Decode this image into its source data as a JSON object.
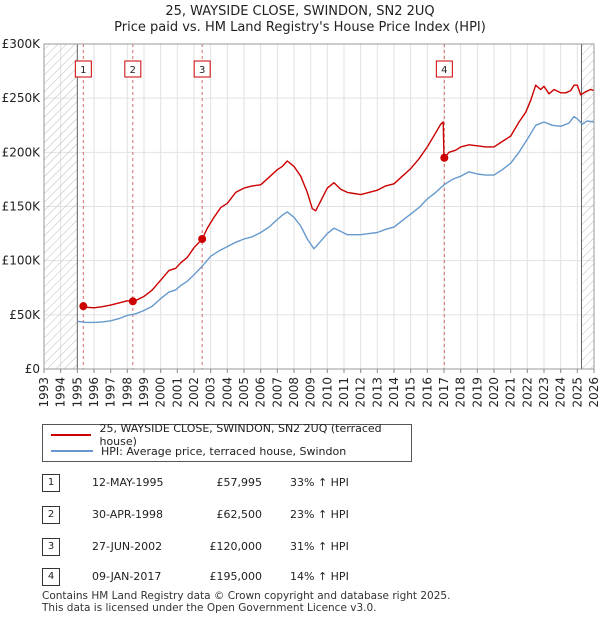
{
  "chart_data": {
    "type": "line",
    "title": "25, WAYSIDE CLOSE, SWINDON, SN2 2UQ",
    "subtitle": "Price paid vs. HM Land Registry's House Price Index (HPI)",
    "xlim": [
      1993,
      2026
    ],
    "ylim": [
      0,
      300000
    ],
    "x_ticks": [
      "1993",
      "1994",
      "1995",
      "1996",
      "1997",
      "1998",
      "1999",
      "2000",
      "2001",
      "2002",
      "2003",
      "2004",
      "2005",
      "2006",
      "2007",
      "2008",
      "2009",
      "2010",
      "2011",
      "2012",
      "2013",
      "2014",
      "2015",
      "2016",
      "2017",
      "2018",
      "2019",
      "2020",
      "2021",
      "2022",
      "2023",
      "2024",
      "2025",
      "2026"
    ],
    "y_ticks": [
      {
        "value": 0,
        "label": "£0"
      },
      {
        "value": 50000,
        "label": "£50K"
      },
      {
        "value": 100000,
        "label": "£100K"
      },
      {
        "value": 150000,
        "label": "£150K"
      },
      {
        "value": 200000,
        "label": "£200K"
      },
      {
        "value": 250000,
        "label": "£250K"
      },
      {
        "value": 300000,
        "label": "£300K"
      }
    ],
    "hatched_before": 1995.0,
    "hatched_after": 2025.25,
    "series": [
      {
        "name": "25, WAYSIDE CLOSE, SWINDON, SN2 2UQ (terraced house)",
        "color": "#cc0000",
        "points": [
          [
            1995.36,
            57995
          ],
          [
            1995.6,
            57000
          ],
          [
            1996.0,
            56500
          ],
          [
            1996.5,
            57500
          ],
          [
            1997.0,
            59000
          ],
          [
            1997.5,
            61000
          ],
          [
            1998.0,
            63000
          ],
          [
            1998.33,
            62500
          ],
          [
            1998.6,
            64000
          ],
          [
            1999.0,
            67000
          ],
          [
            1999.5,
            73000
          ],
          [
            2000.0,
            82000
          ],
          [
            2000.5,
            91000
          ],
          [
            2000.9,
            93000
          ],
          [
            2001.2,
            98000
          ],
          [
            2001.6,
            103000
          ],
          [
            2002.0,
            112000
          ],
          [
            2002.49,
            120000
          ],
          [
            2002.8,
            130000
          ],
          [
            2003.2,
            140000
          ],
          [
            2003.6,
            149000
          ],
          [
            2004.0,
            153000
          ],
          [
            2004.5,
            163000
          ],
          [
            2005.0,
            167000
          ],
          [
            2005.5,
            169000
          ],
          [
            2006.0,
            170000
          ],
          [
            2006.5,
            177000
          ],
          [
            2007.0,
            184000
          ],
          [
            2007.3,
            187000
          ],
          [
            2007.6,
            192000
          ],
          [
            2008.0,
            187000
          ],
          [
            2008.4,
            178000
          ],
          [
            2008.8,
            163000
          ],
          [
            2009.1,
            148000
          ],
          [
            2009.3,
            146000
          ],
          [
            2009.6,
            155000
          ],
          [
            2010.0,
            167000
          ],
          [
            2010.4,
            172000
          ],
          [
            2010.8,
            166000
          ],
          [
            2011.2,
            163000
          ],
          [
            2011.6,
            162000
          ],
          [
            2012.0,
            161000
          ],
          [
            2012.5,
            163000
          ],
          [
            2013.0,
            165000
          ],
          [
            2013.5,
            169000
          ],
          [
            2014.0,
            171000
          ],
          [
            2014.5,
            178000
          ],
          [
            2015.0,
            185000
          ],
          [
            2015.5,
            194000
          ],
          [
            2016.0,
            205000
          ],
          [
            2016.5,
            218000
          ],
          [
            2016.8,
            226000
          ],
          [
            2016.95,
            228000
          ],
          [
            2017.0,
            195000
          ],
          [
            2017.02,
            195000
          ],
          [
            2017.3,
            200000
          ],
          [
            2017.7,
            202000
          ],
          [
            2018.0,
            205000
          ],
          [
            2018.5,
            207000
          ],
          [
            2019.0,
            206000
          ],
          [
            2019.5,
            205000
          ],
          [
            2020.0,
            205000
          ],
          [
            2020.5,
            210000
          ],
          [
            2021.0,
            215000
          ],
          [
            2021.5,
            228000
          ],
          [
            2021.9,
            237000
          ],
          [
            2022.2,
            248000
          ],
          [
            2022.5,
            262000
          ],
          [
            2022.8,
            258000
          ],
          [
            2023.0,
            261000
          ],
          [
            2023.3,
            254000
          ],
          [
            2023.6,
            258000
          ],
          [
            2024.0,
            255000
          ],
          [
            2024.3,
            255000
          ],
          [
            2024.6,
            257000
          ],
          [
            2024.8,
            262000
          ],
          [
            2025.0,
            262000
          ],
          [
            2025.2,
            253000
          ],
          [
            2025.5,
            256000
          ],
          [
            2025.8,
            258000
          ],
          [
            2026.0,
            257000
          ]
        ]
      },
      {
        "name": "HPI: Average price, terraced house, Swindon",
        "color": "#6699cc",
        "points": [
          [
            1995.0,
            44000
          ],
          [
            1995.5,
            43000
          ],
          [
            1996.0,
            43000
          ],
          [
            1996.5,
            43500
          ],
          [
            1997.0,
            44500
          ],
          [
            1997.5,
            46500
          ],
          [
            1998.0,
            49500
          ],
          [
            1998.5,
            51000
          ],
          [
            1999.0,
            54000
          ],
          [
            1999.5,
            58000
          ],
          [
            2000.0,
            65000
          ],
          [
            2000.5,
            71000
          ],
          [
            2000.9,
            73000
          ],
          [
            2001.2,
            77000
          ],
          [
            2001.6,
            81000
          ],
          [
            2002.0,
            87000
          ],
          [
            2002.5,
            95000
          ],
          [
            2003.0,
            104000
          ],
          [
            2003.5,
            109000
          ],
          [
            2004.0,
            113000
          ],
          [
            2004.5,
            117000
          ],
          [
            2005.0,
            120000
          ],
          [
            2005.5,
            122000
          ],
          [
            2006.0,
            126000
          ],
          [
            2006.5,
            131000
          ],
          [
            2007.0,
            138000
          ],
          [
            2007.3,
            142000
          ],
          [
            2007.6,
            145000
          ],
          [
            2008.0,
            140000
          ],
          [
            2008.4,
            132000
          ],
          [
            2008.8,
            120000
          ],
          [
            2009.2,
            111000
          ],
          [
            2009.6,
            118000
          ],
          [
            2010.0,
            125000
          ],
          [
            2010.4,
            130000
          ],
          [
            2010.8,
            127000
          ],
          [
            2011.2,
            124000
          ],
          [
            2011.6,
            124000
          ],
          [
            2012.0,
            124000
          ],
          [
            2012.5,
            125000
          ],
          [
            2013.0,
            126000
          ],
          [
            2013.5,
            129000
          ],
          [
            2014.0,
            131000
          ],
          [
            2014.5,
            137000
          ],
          [
            2015.0,
            143000
          ],
          [
            2015.5,
            149000
          ],
          [
            2016.0,
            157000
          ],
          [
            2016.5,
            163000
          ],
          [
            2017.0,
            170000
          ],
          [
            2017.5,
            175000
          ],
          [
            2018.0,
            178000
          ],
          [
            2018.5,
            182000
          ],
          [
            2019.0,
            180000
          ],
          [
            2019.5,
            179000
          ],
          [
            2020.0,
            179000
          ],
          [
            2020.5,
            184000
          ],
          [
            2021.0,
            190000
          ],
          [
            2021.5,
            200000
          ],
          [
            2022.0,
            212000
          ],
          [
            2022.5,
            225000
          ],
          [
            2023.0,
            228000
          ],
          [
            2023.5,
            225000
          ],
          [
            2024.0,
            224000
          ],
          [
            2024.5,
            227000
          ],
          [
            2024.8,
            233000
          ],
          [
            2025.0,
            231000
          ],
          [
            2025.3,
            226000
          ],
          [
            2025.6,
            229000
          ],
          [
            2026.0,
            228000
          ]
        ]
      }
    ],
    "sales": [
      {
        "num": "1",
        "x": 1995.36,
        "price": 57995,
        "date": "12-MAY-1995",
        "price_label": "£57,995",
        "hpi": "33% ↑ HPI"
      },
      {
        "num": "2",
        "x": 1998.33,
        "price": 62500,
        "date": "30-APR-1998",
        "price_label": "£62,500",
        "hpi": "23% ↑ HPI"
      },
      {
        "num": "3",
        "x": 2002.49,
        "price": 120000,
        "date": "27-JUN-2002",
        "price_label": "£120,000",
        "hpi": "31% ↑ HPI"
      },
      {
        "num": "4",
        "x": 2017.02,
        "price": 195000,
        "date": "09-JAN-2017",
        "price_label": "£195,000",
        "hpi": "14% ↑ HPI"
      }
    ],
    "legend": [
      {
        "label": "25, WAYSIDE CLOSE, SWINDON, SN2 2UQ (terraced house)",
        "color": "#cc0000"
      },
      {
        "label": "HPI: Average price, terraced house, Swindon",
        "color": "#6699cc"
      }
    ]
  },
  "footer": {
    "line1": "Contains HM Land Registry data © Crown copyright and database right 2025.",
    "line2": "This data is licensed under the Open Government Licence v3.0."
  }
}
